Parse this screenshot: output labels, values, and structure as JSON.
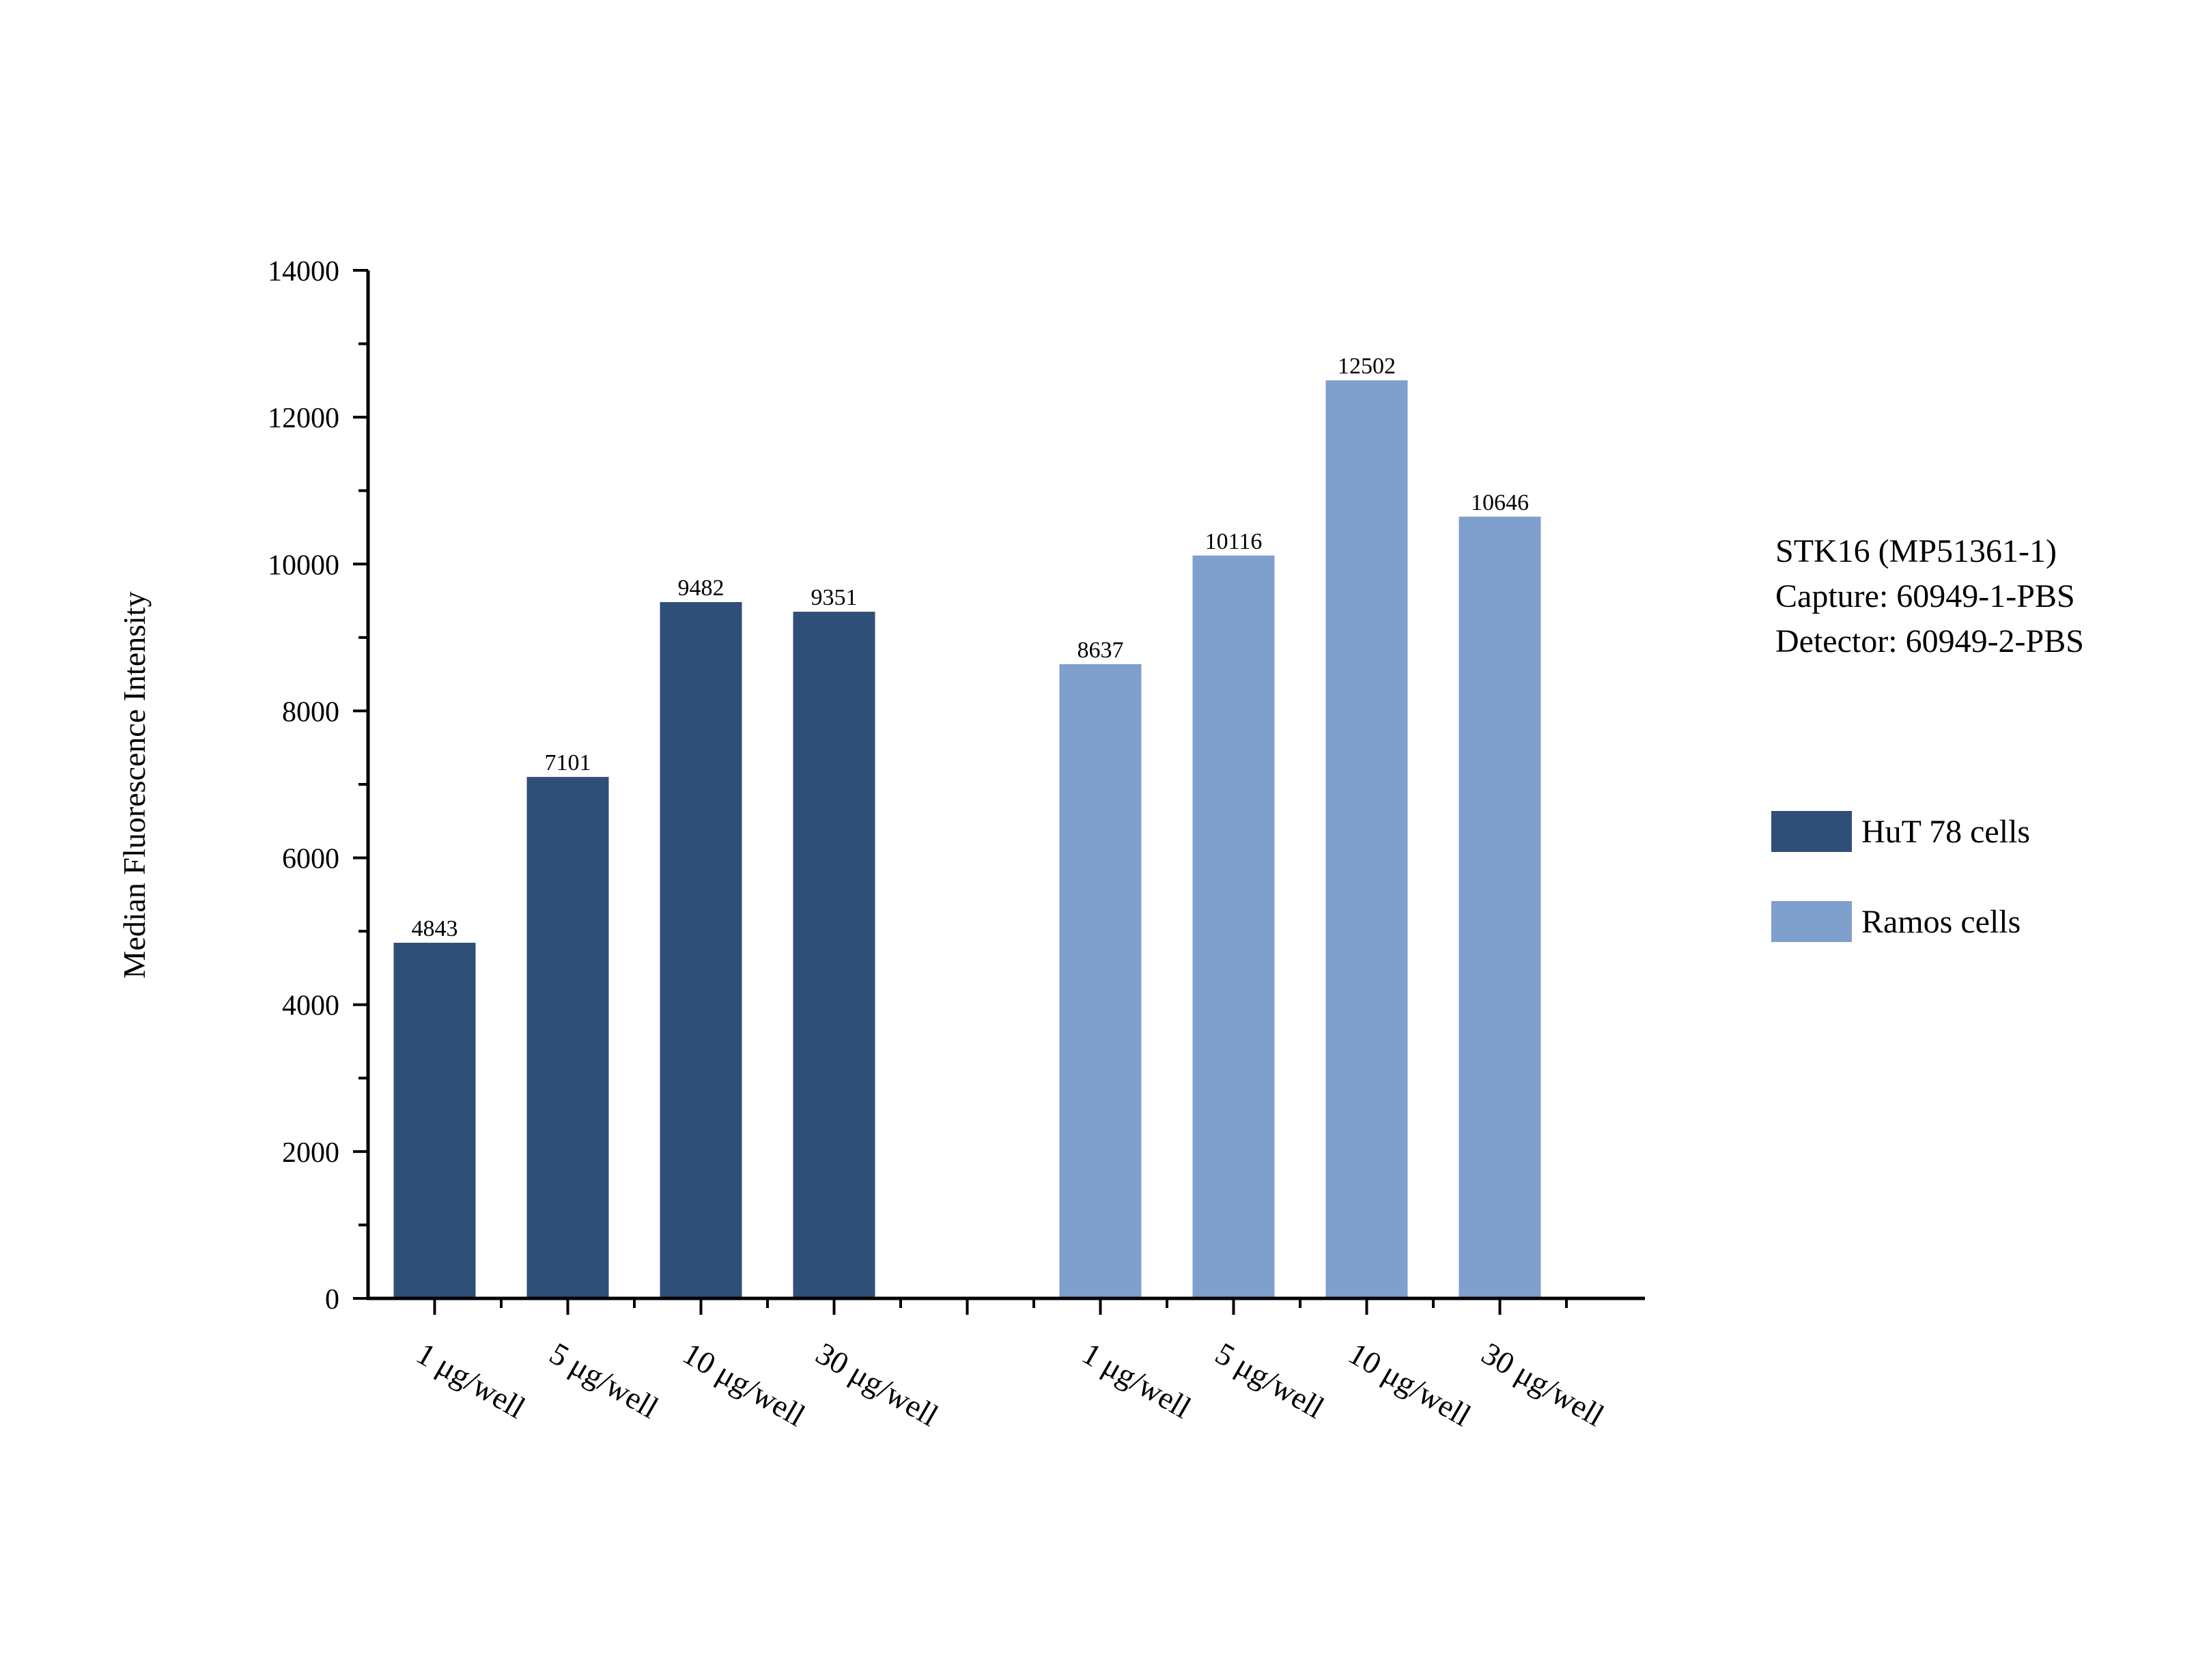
{
  "chart_data": {
    "type": "bar",
    "ylabel": "Median Fluorescence Intensity",
    "xlabel": "",
    "ylim": [
      0,
      14000
    ],
    "y_ticks": [
      0,
      2000,
      4000,
      6000,
      8000,
      10000,
      12000,
      14000
    ],
    "y_ticks_labeled": [
      "0",
      "2000",
      "4000",
      "6000",
      "8000",
      "10000",
      "12000",
      "14000"
    ],
    "grid": false,
    "legend_position": "right",
    "annotation": [
      "STK16 (MP51361-1)",
      "Capture: 60949-1-PBS",
      "Detector: 60949-2-PBS"
    ],
    "groups": [
      {
        "name": "HuT 78 cells",
        "color": "#2f4f78",
        "categories": [
          "1 μg/well",
          "5 μg/well",
          "10 μg/well",
          "30 μg/well"
        ],
        "values": [
          4843,
          7101,
          9482,
          9351
        ],
        "labels": [
          "4843",
          "7101",
          "9482",
          "9351"
        ]
      },
      {
        "name": "Ramos cells",
        "color": "#7f9fcc",
        "categories": [
          "1 μg/well",
          "5 μg/well",
          "10 μg/well",
          "30 μg/well"
        ],
        "values": [
          8637,
          10116,
          12502,
          10646
        ],
        "labels": [
          "8637",
          "10116",
          "12502",
          "10646"
        ]
      }
    ]
  }
}
